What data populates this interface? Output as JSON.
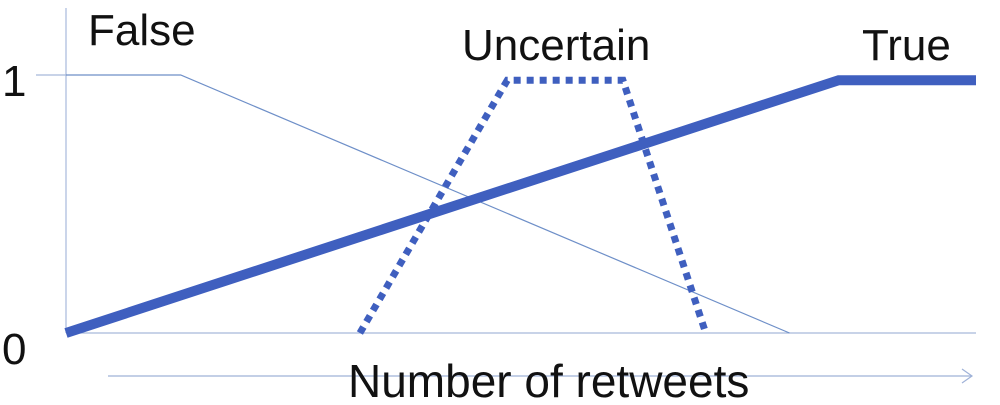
{
  "chart_data": {
    "type": "line",
    "title": "",
    "xlabel": "Number of retweets",
    "ylabel": "",
    "x_range": [
      0,
      100
    ],
    "ylim": [
      0,
      1
    ],
    "yticks": [
      "0",
      "1"
    ],
    "grid": false,
    "legend": "none",
    "series": [
      {
        "name": "False",
        "style": "thin",
        "color": "#6e8fc8",
        "x": [
          0,
          12.6,
          79.5
        ],
        "y": [
          1,
          1,
          0
        ]
      },
      {
        "name": "Uncertain",
        "style": "dotted",
        "color": "#3f5fbf",
        "x": [
          32.3,
          48.5,
          61.2,
          70.3
        ],
        "y": [
          0,
          0.98,
          0.98,
          0
        ]
      },
      {
        "name": "True",
        "style": "thick",
        "color": "#3f5fbf",
        "x": [
          0,
          84.9,
          100
        ],
        "y": [
          0,
          0.98,
          0.98
        ]
      }
    ]
  },
  "colors": {
    "axis": "#a8b9db",
    "arrow": "#9fb2d8"
  }
}
